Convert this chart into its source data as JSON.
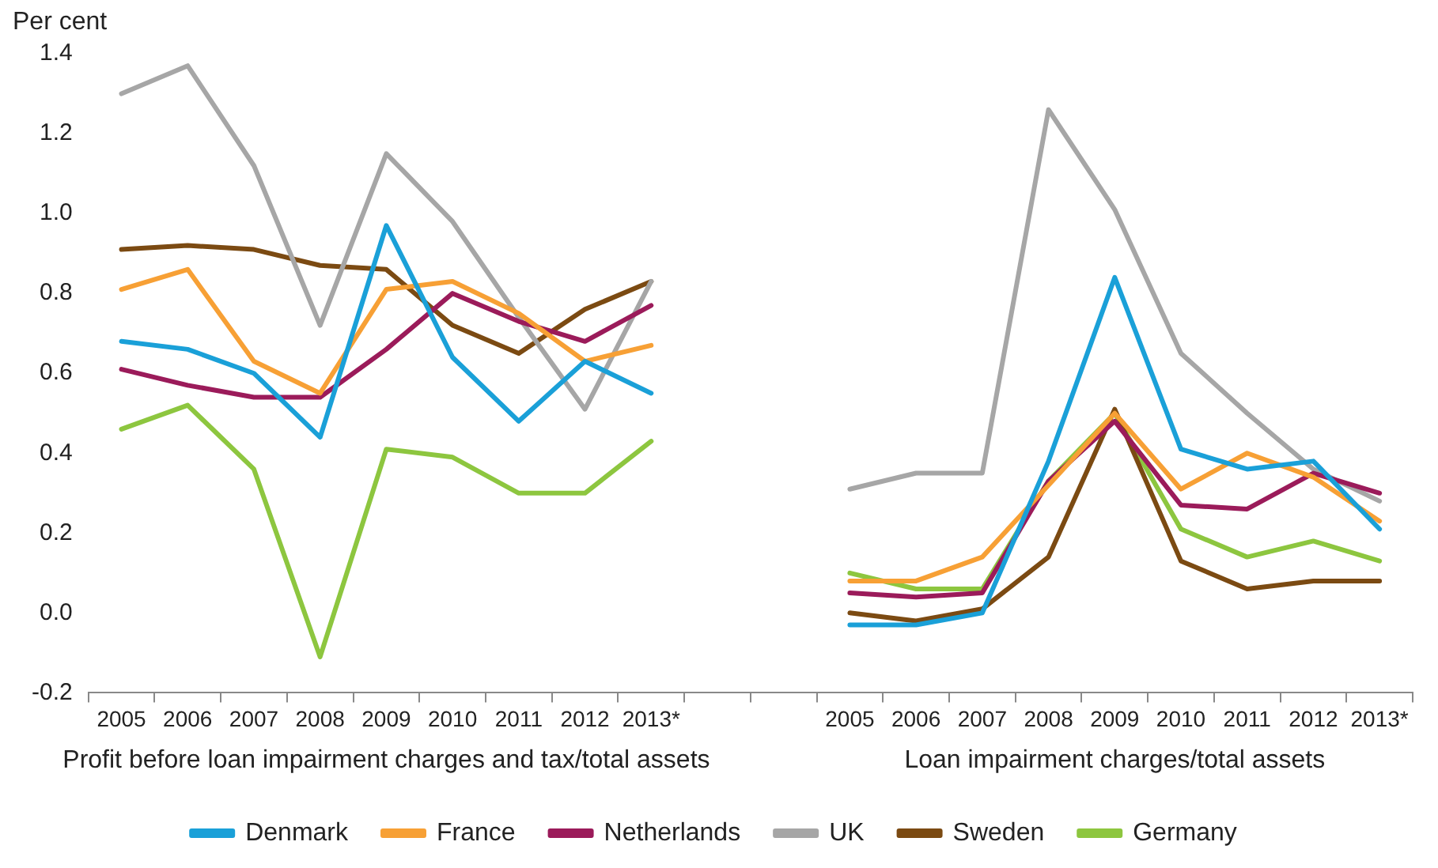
{
  "chart_data": {
    "type": "line",
    "ylabel": "Per cent",
    "categories": [
      "2005",
      "2006",
      "2007",
      "2008",
      "2009",
      "2010",
      "2011",
      "2012",
      "2013*",
      null,
      null,
      "2005",
      "2006",
      "2007",
      "2008",
      "2009",
      "2010",
      "2011",
      "2012",
      "2013*"
    ],
    "series": [
      {
        "name": "Denmark",
        "color": "#1aa0d8",
        "values": [
          0.68,
          0.66,
          0.6,
          0.44,
          0.97,
          0.64,
          0.48,
          0.63,
          0.55,
          null,
          null,
          -0.03,
          -0.03,
          0.0,
          0.38,
          0.84,
          0.41,
          0.36,
          0.38,
          0.21
        ]
      },
      {
        "name": "France",
        "color": "#f7a035",
        "values": [
          0.81,
          0.86,
          0.63,
          0.55,
          0.81,
          0.83,
          0.75,
          0.63,
          0.67,
          null,
          null,
          0.08,
          0.08,
          0.14,
          0.32,
          0.5,
          0.31,
          0.4,
          0.34,
          0.23
        ]
      },
      {
        "name": "Netherlands",
        "color": "#9b1b5a",
        "values": [
          0.61,
          0.57,
          0.54,
          0.54,
          0.66,
          0.8,
          0.73,
          0.68,
          0.77,
          null,
          null,
          0.05,
          0.04,
          0.05,
          0.33,
          0.48,
          0.27,
          0.26,
          0.35,
          0.3
        ]
      },
      {
        "name": "UK",
        "color": "#a6a6a6",
        "values": [
          1.3,
          1.37,
          1.12,
          0.72,
          1.15,
          0.98,
          0.74,
          0.51,
          0.83,
          null,
          null,
          0.31,
          0.35,
          0.35,
          1.26,
          1.01,
          0.65,
          0.5,
          0.36,
          0.28
        ]
      },
      {
        "name": "Sweden",
        "color": "#7b4a12",
        "values": [
          0.91,
          0.92,
          0.91,
          0.87,
          0.86,
          0.72,
          0.65,
          0.76,
          0.83,
          null,
          null,
          0.0,
          -0.02,
          0.01,
          0.14,
          0.51,
          0.13,
          0.06,
          0.08,
          0.08
        ]
      },
      {
        "name": "Germany",
        "color": "#8dc63f",
        "values": [
          0.46,
          0.52,
          0.36,
          -0.11,
          0.41,
          0.39,
          0.3,
          0.3,
          0.43,
          null,
          null,
          0.1,
          0.06,
          0.06,
          0.33,
          0.5,
          0.21,
          0.14,
          0.18,
          0.13
        ]
      }
    ],
    "ylim": [
      -0.2,
      1.4
    ],
    "yticks": [
      {
        "value": -0.2,
        "label": "-0.2"
      },
      {
        "value": 0,
        "label": "0.0"
      },
      {
        "value": 0.2,
        "label": "0.2"
      },
      {
        "value": 0.4,
        "label": "0.4"
      },
      {
        "value": 0.6,
        "label": "0.6"
      },
      {
        "value": 0.8,
        "label": "0.8"
      },
      {
        "value": 1,
        "label": "1.0"
      },
      {
        "value": 1.2,
        "label": "1.2"
      },
      {
        "value": 1.4,
        "label": "1.4"
      }
    ],
    "annotations": [
      "Profit before loan impairment charges and tax/total assets",
      "Loan impairment charges/total assets"
    ],
    "legend": "bottom",
    "marker": "none",
    "line_style": "solid"
  }
}
